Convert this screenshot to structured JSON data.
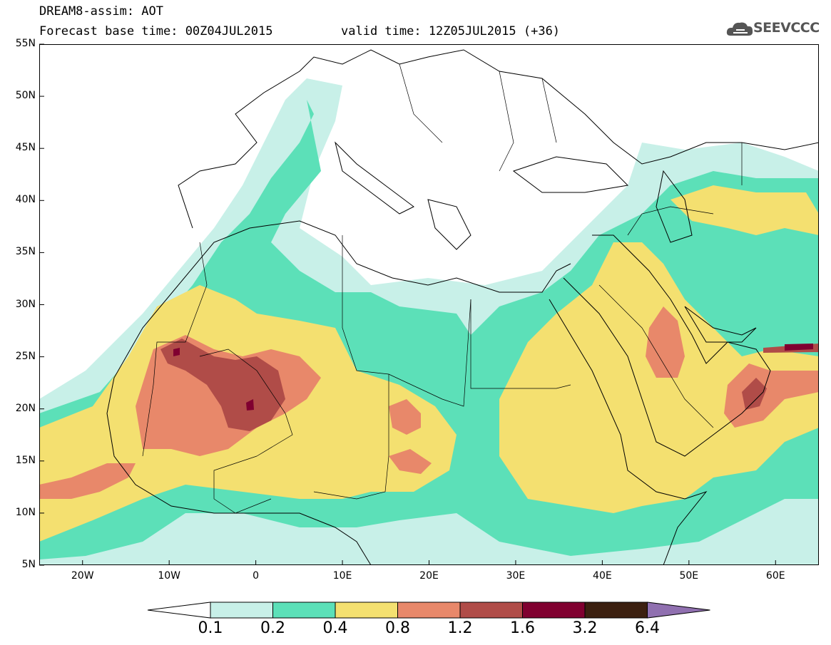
{
  "header": {
    "title": "DREAM8-assim: AOT",
    "base_time": "Forecast base time: 00Z04JUL2015",
    "valid_time": "valid time: 12Z05JUL2015 (+36)",
    "logo_text": "SEEVCCC"
  },
  "map": {
    "lon_range": [
      -25,
      65
    ],
    "lat_range": [
      5,
      55
    ],
    "lat_ticks": [
      "55N",
      "50N",
      "45N",
      "40N",
      "35N",
      "30N",
      "25N",
      "20N",
      "15N",
      "10N",
      "5N"
    ],
    "lon_ticks": [
      "20W",
      "10W",
      "0",
      "10E",
      "20E",
      "30E",
      "40E",
      "50E",
      "60E"
    ],
    "variable": "Aerosol optical thickness"
  },
  "colorbar": {
    "levels": [
      "0.1",
      "0.2",
      "0.4",
      "0.8",
      "1.2",
      "1.6",
      "3.2",
      "6.4"
    ],
    "colors": [
      "#c8f0e8",
      "#5ce0b8",
      "#f4e070",
      "#e8886a",
      "#b04c48",
      "#800030",
      "#3c2010",
      "#9070b0"
    ],
    "under_color": "#ffffff"
  }
}
